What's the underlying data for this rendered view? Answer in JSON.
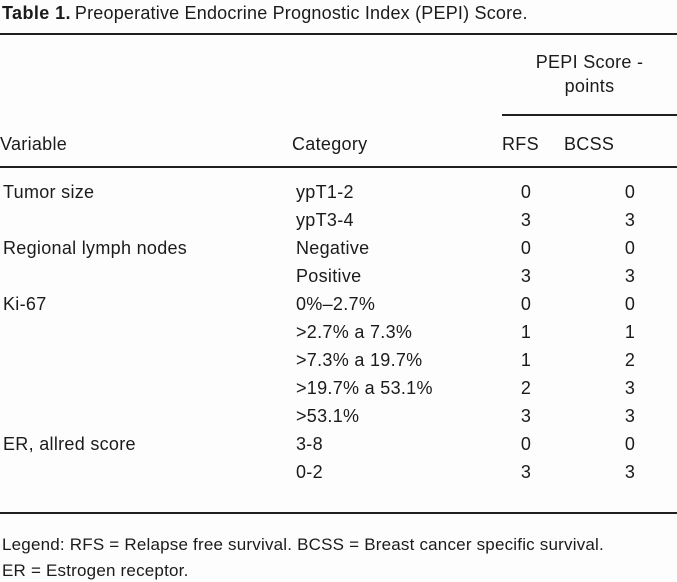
{
  "title": {
    "label": "Table 1.",
    "caption": "Preoperative Endocrine Prognostic Index (PEPI) Score."
  },
  "table": {
    "spanner": {
      "line1": "PEPI Score -",
      "line2": "points"
    },
    "columns": [
      "Variable",
      "Category",
      "RFS",
      "BCSS"
    ],
    "rows": [
      {
        "variable": "Tumor size",
        "category": "ypT1-2",
        "rfs": "0",
        "bcss": "0"
      },
      {
        "variable": "",
        "category": "ypT3-4",
        "rfs": "3",
        "bcss": "3"
      },
      {
        "variable": "Regional lymph nodes",
        "category": "Negative",
        "rfs": "0",
        "bcss": "0"
      },
      {
        "variable": "",
        "category": "Positive",
        "rfs": "3",
        "bcss": "3"
      },
      {
        "variable": "Ki-67",
        "category": "0%–2.7%",
        "rfs": "0",
        "bcss": "0"
      },
      {
        "variable": "",
        "category": ">2.7% a 7.3%",
        "rfs": "1",
        "bcss": "1"
      },
      {
        "variable": "",
        "category": ">7.3% a 19.7%",
        "rfs": "1",
        "bcss": "2"
      },
      {
        "variable": "",
        "category": ">19.7% a 53.1%",
        "rfs": "2",
        "bcss": "3"
      },
      {
        "variable": "",
        "category": ">53.1%",
        "rfs": "3",
        "bcss": "3"
      },
      {
        "variable": "ER, allred score",
        "category": "3-8",
        "rfs": "0",
        "bcss": "0"
      },
      {
        "variable": "",
        "category": "0-2",
        "rfs": "3",
        "bcss": "3"
      }
    ]
  },
  "legend": {
    "line1": "Legend: RFS = Relapse free survival. BCSS = Breast cancer specific survival.",
    "line2": "ER = Estrogen receptor."
  },
  "colors": {
    "text": "#1b1b1b",
    "rule": "#1f1f1f",
    "background": "#fdfdfd"
  }
}
